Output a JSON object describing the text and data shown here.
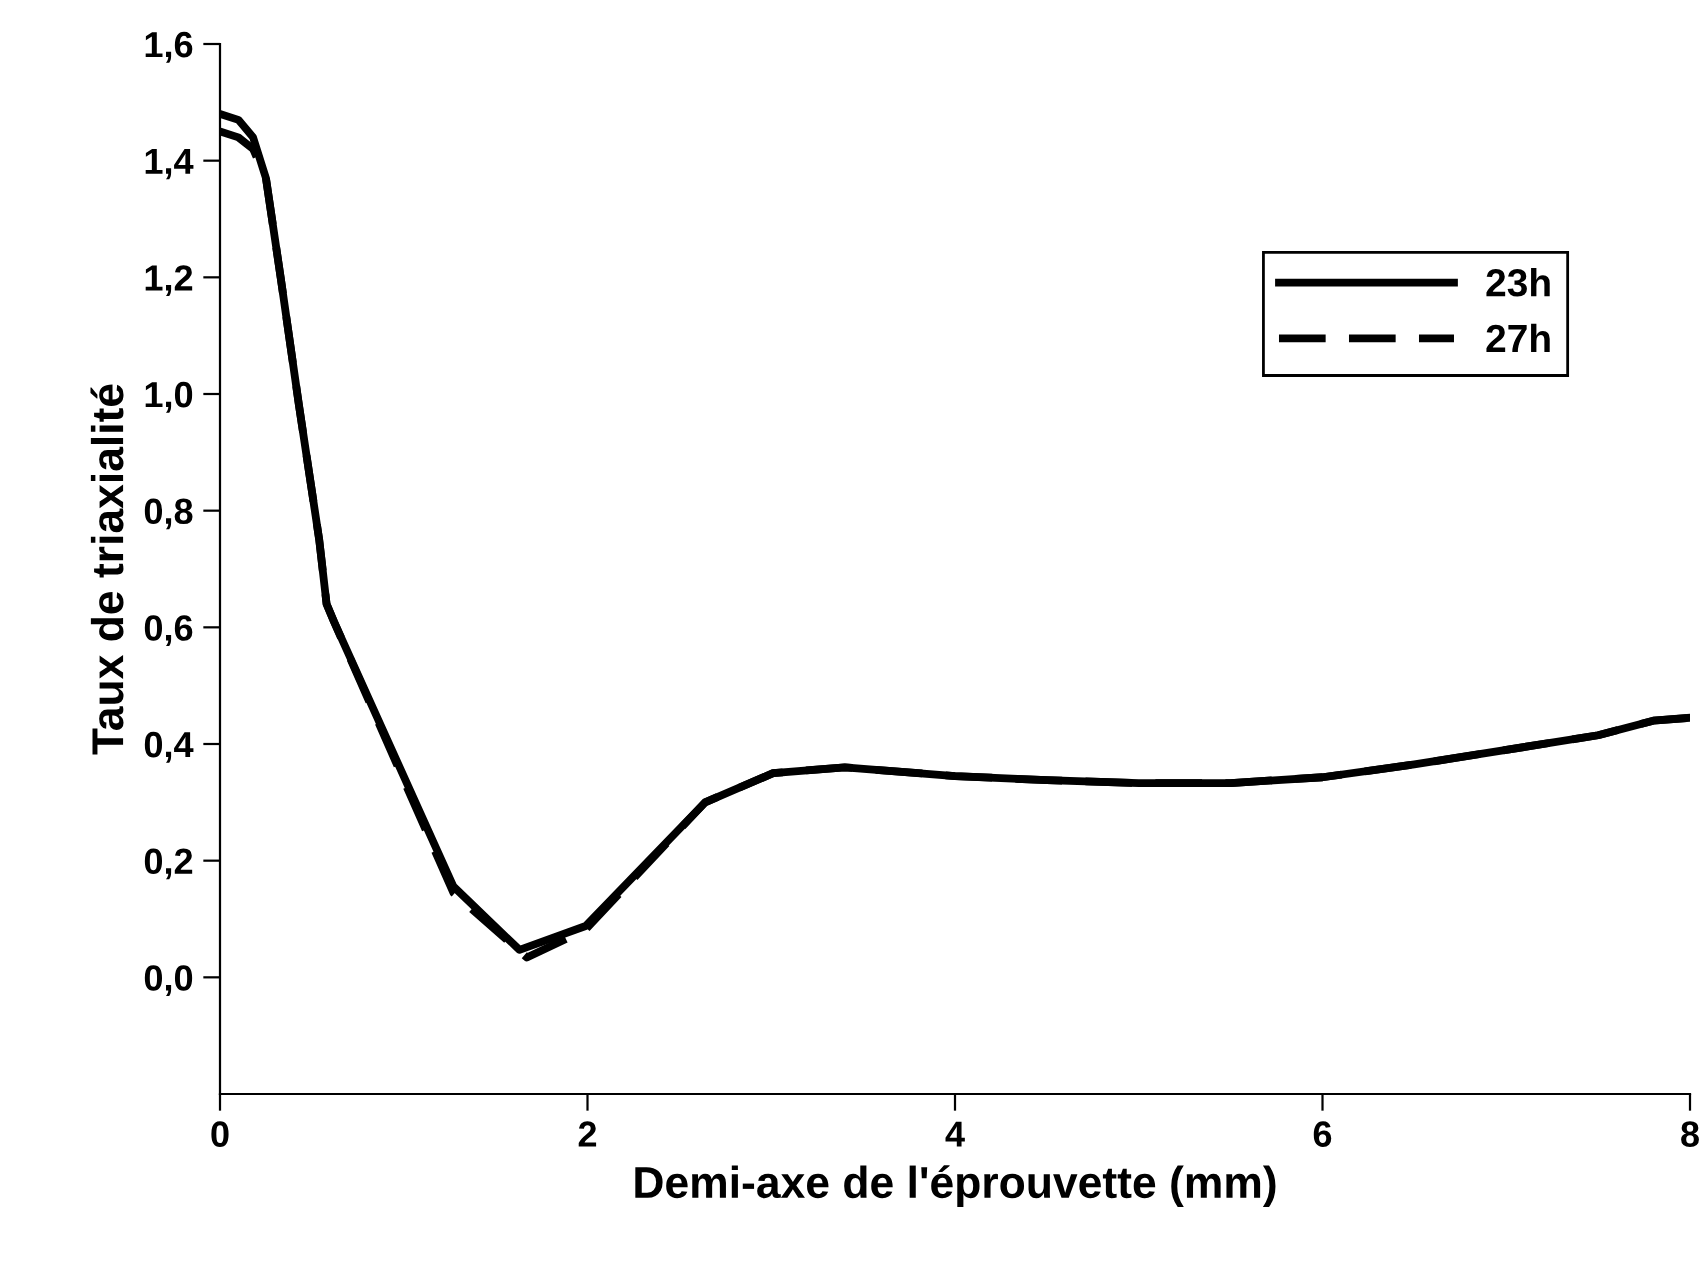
{
  "chart_data": {
    "type": "line",
    "xlabel": "Demi-axe de l'éprouvette (mm)",
    "ylabel": "Taux de triaxialité",
    "xlim": [
      0,
      8
    ],
    "xticks": [
      0,
      2,
      4,
      6,
      8
    ],
    "ylim": [
      -0.2,
      1.6
    ],
    "yticks": [
      {
        "value": 0,
        "label": "0,0"
      },
      {
        "value": 0.2,
        "label": "0,2"
      },
      {
        "value": 0.4,
        "label": "0,4"
      },
      {
        "value": 0.6,
        "label": "0,6"
      },
      {
        "value": 0.8,
        "label": "0,8"
      },
      {
        "value": 1.0,
        "label": "1,0"
      },
      {
        "value": 1.2,
        "label": "1,2"
      },
      {
        "value": 1.4,
        "label": "1,4"
      },
      {
        "value": 1.6,
        "label": "1,6"
      }
    ],
    "grid": false,
    "legend": "top right",
    "marker": "none",
    "series": [
      {
        "name": "23h",
        "color": "#000000",
        "line_style": "solid",
        "x": [
          0,
          0.1,
          0.18,
          0.25,
          0.33,
          0.43,
          0.54,
          0.58,
          0.62,
          1.27,
          1.63,
          1.99,
          2.64,
          3.01,
          3.4,
          4.0,
          4.5,
          5.0,
          5.5,
          6.0,
          6.5,
          7.0,
          7.5,
          7.8,
          8.0
        ],
        "values": [
          1.48,
          1.47,
          1.44,
          1.37,
          1.2,
          0.98,
          0.75,
          0.64,
          0.61,
          0.156,
          0.047,
          0.088,
          0.3,
          0.35,
          0.36,
          0.345,
          0.338,
          0.333,
          0.333,
          0.343,
          0.365,
          0.39,
          0.415,
          0.44,
          0.445
        ]
      },
      {
        "name": "27h",
        "color": "#000000",
        "line_style": "dashed",
        "x": [
          0,
          0.1,
          0.18,
          0.25,
          0.33,
          0.43,
          0.54,
          0.58,
          0.62,
          1.27,
          1.67,
          1.99,
          2.64,
          3.01,
          3.4,
          4.0,
          4.5,
          5.0,
          5.5,
          6.0,
          6.5,
          7.0,
          7.5,
          7.8,
          8.0
        ],
        "values": [
          1.45,
          1.44,
          1.42,
          1.37,
          1.2,
          0.98,
          0.75,
          0.64,
          0.61,
          0.145,
          0.034,
          0.082,
          0.3,
          0.35,
          0.36,
          0.345,
          0.338,
          0.333,
          0.333,
          0.343,
          0.365,
          0.39,
          0.415,
          0.44,
          0.445
        ]
      }
    ]
  }
}
